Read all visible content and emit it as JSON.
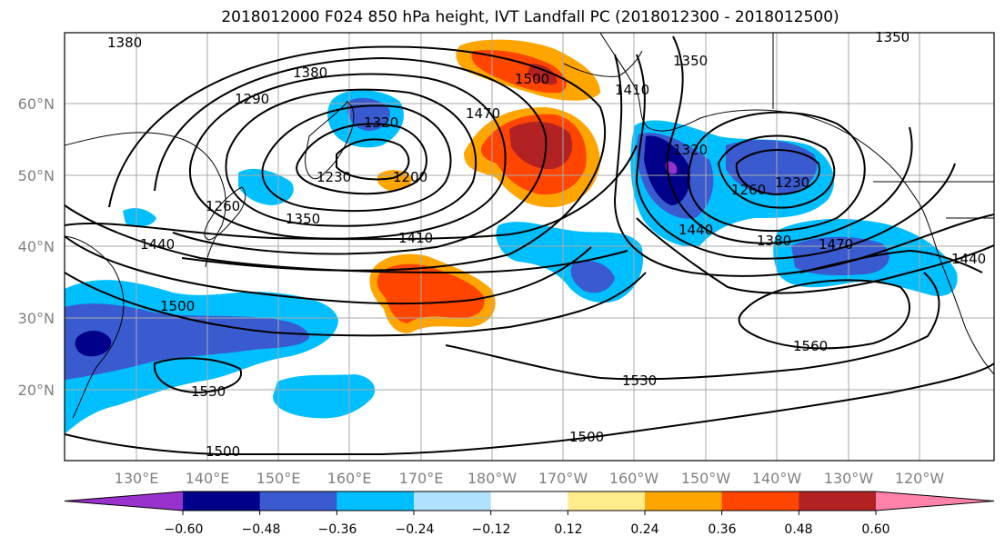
{
  "title": "2018012000 F024 850 hPa height, IVT Landfall PC (2018012300 - 2018012500)",
  "lat_labels": [
    "60°N",
    "50°N",
    "40°N",
    "30°N",
    "20°N"
  ],
  "lon_labels": [
    "130°E",
    "140°E",
    "150°E",
    "160°E",
    "170°E",
    "180°W",
    "170°W",
    "160°W",
    "150°W",
    "140°W",
    "130°W",
    "120°W"
  ],
  "contour_labels": [
    "1380",
    "1380",
    "1290",
    "1320",
    "1230",
    "1200",
    "1260",
    "1350",
    "1410",
    "1440",
    "1470",
    "1500",
    "1410",
    "1350",
    "1350",
    "1320",
    "1260",
    "1230",
    "1440",
    "1380",
    "1470",
    "1440",
    "1560",
    "1500",
    "1530",
    "1530",
    "1500",
    "1500"
  ],
  "colorbar": {
    "ticks": [
      "−0.60",
      "−0.48",
      "−0.36",
      "−0.24",
      "−0.12",
      "0.12",
      "0.24",
      "0.36",
      "0.48",
      "0.60"
    ],
    "colors": [
      "#9932cc",
      "#00008b",
      "#3a5ad0",
      "#00bfff",
      "#b0e2ff",
      "#ffffff",
      "#ffec8b",
      "#ffa500",
      "#ff4500",
      "#b22222",
      "#ff82ab"
    ]
  },
  "colors": {
    "strong_negative": "#00008b",
    "negative": "#3a5ad0",
    "weak_negative": "#00bfff",
    "positive": "#ffa500",
    "strong_positive": "#b22222"
  }
}
